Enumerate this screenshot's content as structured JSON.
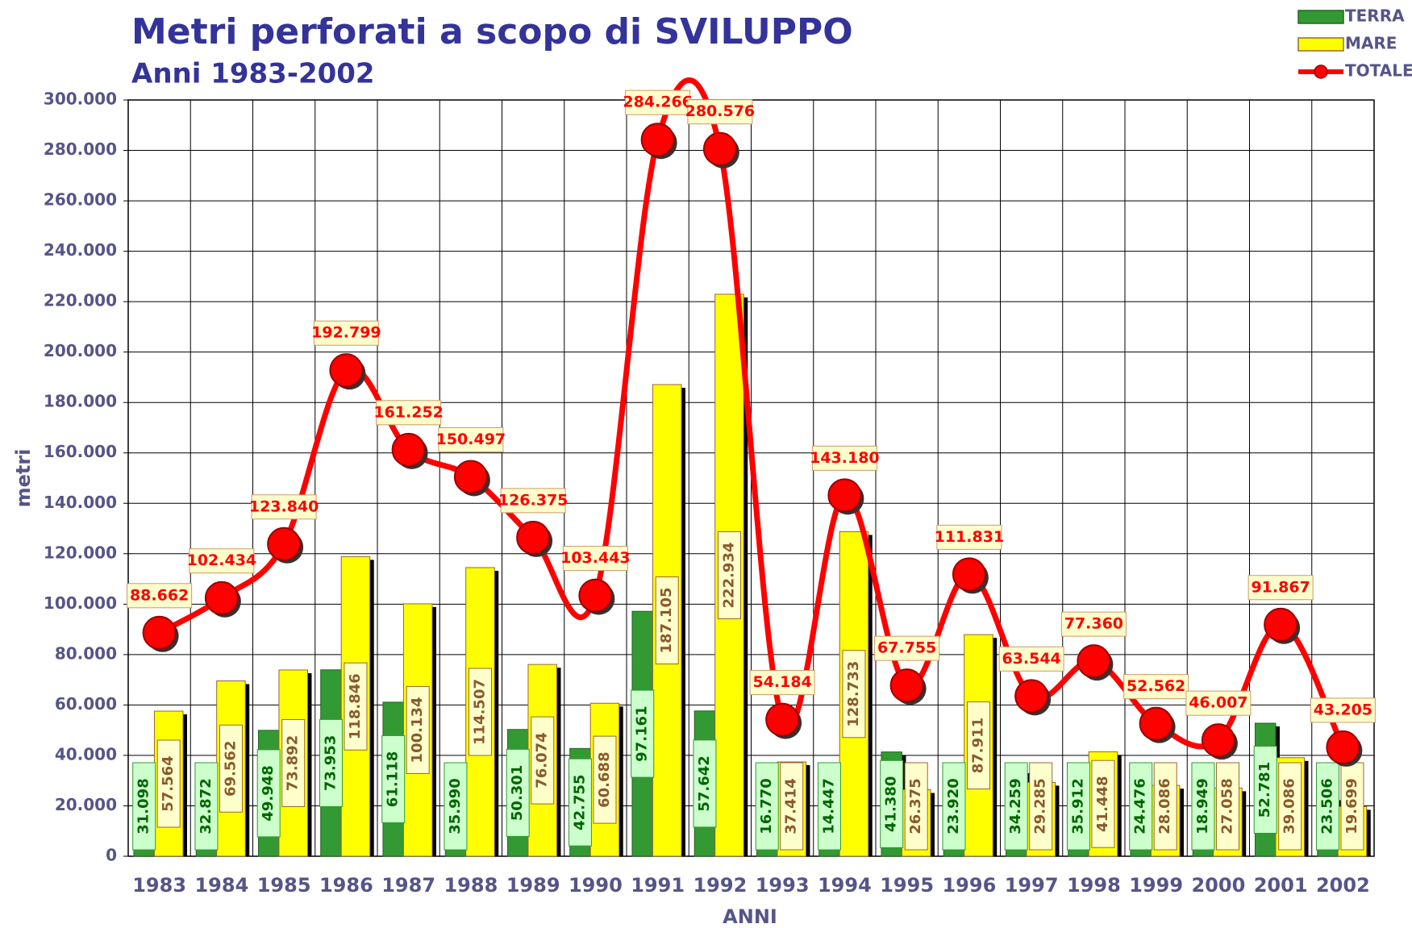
{
  "chart_data": {
    "type": "bar",
    "title": "Metri perforati a scopo di SVILUPPO",
    "subtitle": "Anni 1983-2002",
    "x_label": "ANNI",
    "y_label": "metri",
    "categories": [
      "1983",
      "1984",
      "1985",
      "1986",
      "1987",
      "1988",
      "1989",
      "1990",
      "1991",
      "1992",
      "1993",
      "1994",
      "1995",
      "1996",
      "1997",
      "1998",
      "1999",
      "2000",
      "2001",
      "2002"
    ],
    "series": [
      {
        "name": "TERRA",
        "type": "bar",
        "color": "#339933",
        "values": [
          31098,
          32872,
          49948,
          73953,
          61118,
          35990,
          50301,
          42755,
          97161,
          57642,
          16770,
          14447,
          41380,
          23920,
          34259,
          35912,
          24476,
          18949,
          52781,
          23506
        ],
        "value_labels": [
          "31.098",
          "32.872",
          "49.948",
          "73.953",
          "61.118",
          "35.990",
          "50.301",
          "42.755",
          "97.161",
          "57.642",
          "16.770",
          "14.447",
          "41.380",
          "23.920",
          "34.259",
          "35.912",
          "24.476",
          "18.949",
          "52.781",
          "23.506"
        ]
      },
      {
        "name": "MARE",
        "type": "bar",
        "color": "#ffff00",
        "values": [
          57564,
          69562,
          73892,
          118846,
          100134,
          114507,
          76074,
          60688,
          187105,
          222934,
          37414,
          128733,
          26375,
          87911,
          29285,
          41448,
          28086,
          27058,
          39086,
          19699
        ],
        "value_labels": [
          "57.564",
          "69.562",
          "73.892",
          "118.846",
          "100.134",
          "114.507",
          "76.074",
          "60.688",
          "187.105",
          "222.934",
          "37.414",
          "128.733",
          "26.375",
          "87.911",
          "29.285",
          "41.448",
          "28.086",
          "27.058",
          "39.086",
          "19.699"
        ]
      },
      {
        "name": "TOTALE",
        "type": "line",
        "color": "#ff0000",
        "values": [
          88662,
          102434,
          123840,
          192799,
          161252,
          150497,
          126375,
          103443,
          284266,
          280576,
          54184,
          143180,
          67755,
          111831,
          63544,
          77360,
          52562,
          46007,
          91867,
          43205
        ],
        "value_labels": [
          "88.662",
          "102.434",
          "123.840",
          "192.799",
          "161.252",
          "150.497",
          "126.375",
          "103.443",
          "284.266",
          "280.576",
          "54.184",
          "143.180",
          "67.755",
          "111.831",
          "63.544",
          "77.360",
          "52.562",
          "46.007",
          "91.867",
          "43.205"
        ]
      }
    ],
    "ylim": [
      0,
      300000
    ],
    "yticks": [
      0,
      {
        "value": 20000,
        "label": "20.000"
      },
      {
        "value": 40000,
        "label": "40.000"
      },
      {
        "value": 60000,
        "label": "60.000"
      },
      {
        "value": 80000,
        "label": "80.000"
      },
      {
        "value": 100000,
        "label": "100.000"
      },
      {
        "value": 120000,
        "label": "120.000"
      },
      {
        "value": 140000,
        "label": "140.000"
      },
      {
        "value": 160000,
        "label": "160.000"
      },
      {
        "value": 180000,
        "label": "180.000"
      },
      {
        "value": 200000,
        "label": "200.000"
      },
      {
        "value": 220000,
        "label": "220.000"
      },
      {
        "value": 240000,
        "label": "240.000"
      },
      {
        "value": 260000,
        "label": "260.000"
      },
      {
        "value": 280000,
        "label": "280.000"
      },
      {
        "value": 300000,
        "label": "300.000"
      }
    ],
    "grid": true,
    "legend": "top-right"
  }
}
